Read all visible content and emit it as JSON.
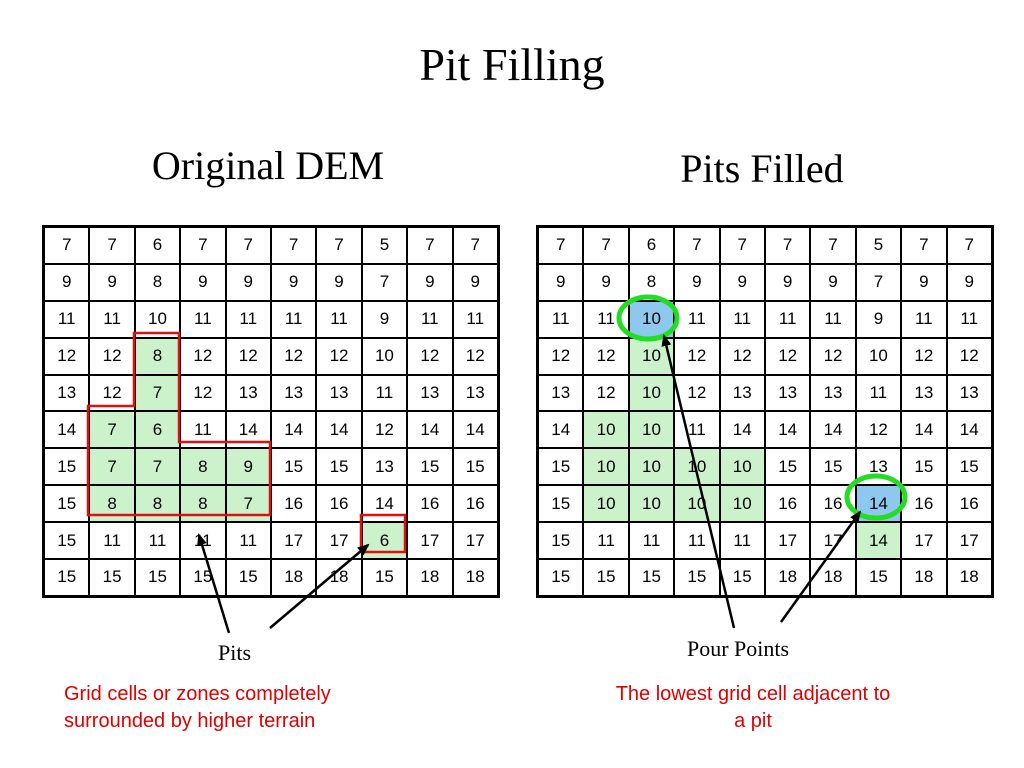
{
  "title": "Pit Filling",
  "colors": {
    "filled_cell": "#ccf2cc",
    "pour_point_cell": "#8fc8ee",
    "pit_outline": "#dd1111",
    "pour_point_ring": "#22dd22",
    "description_text": "#e00000"
  },
  "original": {
    "title": "Original DEM",
    "rows": [
      [
        "7",
        "7",
        "6",
        "7",
        "7",
        "7",
        "7",
        "5",
        "7",
        "7"
      ],
      [
        "9",
        "9",
        "8",
        "9",
        "9",
        "9",
        "9",
        "7",
        "9",
        "9"
      ],
      [
        "11",
        "11",
        "10",
        "11",
        "11",
        "11",
        "11",
        "9",
        "11",
        "11"
      ],
      [
        "12",
        "12",
        "8",
        "12",
        "12",
        "12",
        "12",
        "10",
        "12",
        "12"
      ],
      [
        "13",
        "12",
        "7",
        "12",
        "13",
        "13",
        "13",
        "11",
        "13",
        "13"
      ],
      [
        "14",
        "7",
        "6",
        "11",
        "14",
        "14",
        "14",
        "12",
        "14",
        "14"
      ],
      [
        "15",
        "7",
        "7",
        "8",
        "9",
        "15",
        "15",
        "13",
        "15",
        "15"
      ],
      [
        "15",
        "8",
        "8",
        "8",
        "7",
        "16",
        "16",
        "14",
        "16",
        "16"
      ],
      [
        "15",
        "11",
        "11",
        "11",
        "11",
        "17",
        "17",
        "6",
        "17",
        "17"
      ],
      [
        "15",
        "15",
        "15",
        "15",
        "15",
        "18",
        "18",
        "15",
        "18",
        "18"
      ]
    ],
    "highlighted_cells": [
      [
        3,
        2
      ],
      [
        4,
        2
      ],
      [
        5,
        1
      ],
      [
        5,
        2
      ],
      [
        6,
        1
      ],
      [
        6,
        2
      ],
      [
        6,
        3
      ],
      [
        6,
        4
      ],
      [
        7,
        1
      ],
      [
        7,
        2
      ],
      [
        7,
        3
      ],
      [
        7,
        4
      ],
      [
        8,
        7
      ]
    ]
  },
  "filled": {
    "title": "Pits Filled",
    "rows": [
      [
        "7",
        "7",
        "6",
        "7",
        "7",
        "7",
        "7",
        "5",
        "7",
        "7"
      ],
      [
        "9",
        "9",
        "8",
        "9",
        "9",
        "9",
        "9",
        "7",
        "9",
        "9"
      ],
      [
        "11",
        "11",
        "10",
        "11",
        "11",
        "11",
        "11",
        "9",
        "11",
        "11"
      ],
      [
        "12",
        "12",
        "10",
        "12",
        "12",
        "12",
        "12",
        "10",
        "12",
        "12"
      ],
      [
        "13",
        "12",
        "10",
        "12",
        "13",
        "13",
        "13",
        "11",
        "13",
        "13"
      ],
      [
        "14",
        "10",
        "10",
        "11",
        "14",
        "14",
        "14",
        "12",
        "14",
        "14"
      ],
      [
        "15",
        "10",
        "10",
        "10",
        "10",
        "15",
        "15",
        "13",
        "15",
        "15"
      ],
      [
        "15",
        "10",
        "10",
        "10",
        "10",
        "16",
        "16",
        "14",
        "16",
        "16"
      ],
      [
        "15",
        "11",
        "11",
        "11",
        "11",
        "17",
        "17",
        "14",
        "17",
        "17"
      ],
      [
        "15",
        "15",
        "15",
        "15",
        "15",
        "18",
        "18",
        "15",
        "18",
        "18"
      ]
    ],
    "highlighted_cells": [
      [
        3,
        2
      ],
      [
        4,
        2
      ],
      [
        5,
        1
      ],
      [
        5,
        2
      ],
      [
        6,
        1
      ],
      [
        6,
        2
      ],
      [
        6,
        3
      ],
      [
        6,
        4
      ],
      [
        7,
        1
      ],
      [
        7,
        2
      ],
      [
        7,
        3
      ],
      [
        7,
        4
      ],
      [
        8,
        7
      ]
    ],
    "pour_point_cells": [
      [
        2,
        2
      ],
      [
        7,
        7
      ]
    ]
  },
  "pits": {
    "label": "Pits",
    "description_line1": "Grid cells or zones completely",
    "description_line2": "surrounded by higher terrain"
  },
  "pour_points": {
    "label": "Pour Points",
    "description_line1": "The lowest grid cell adjacent to",
    "description_line2": "a pit"
  }
}
